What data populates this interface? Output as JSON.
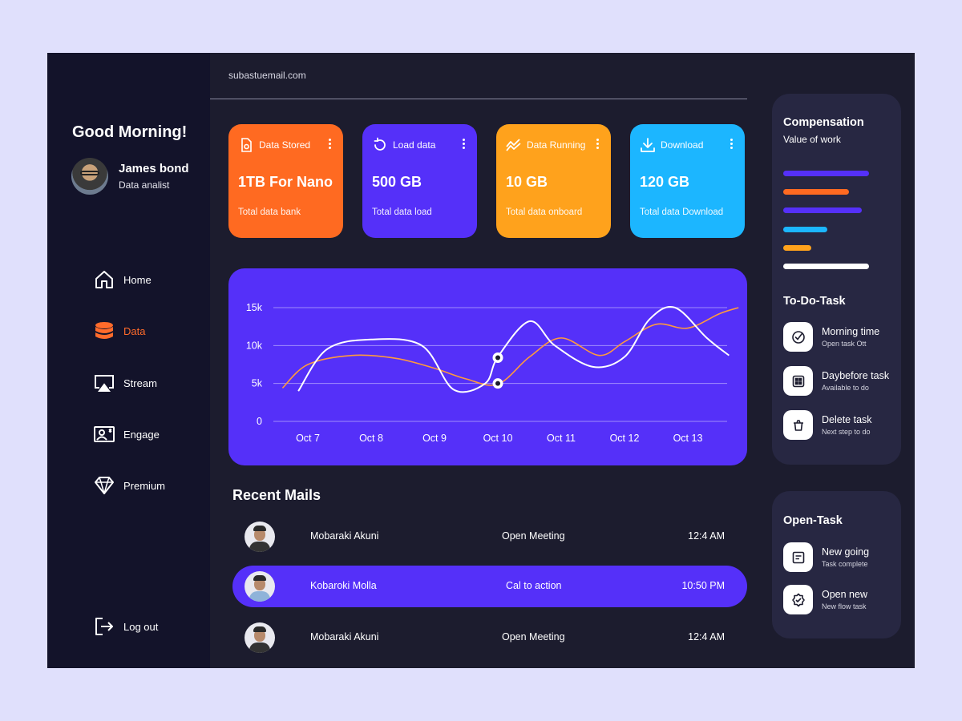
{
  "sidebar": {
    "greeting": "Good Morning!",
    "user_name": "James bond",
    "user_role": "Data analist",
    "nav": [
      {
        "label": "Home",
        "icon": "home-icon"
      },
      {
        "label": "Data",
        "icon": "database-icon",
        "active": true
      },
      {
        "label": "Stream",
        "icon": "cast-icon"
      },
      {
        "label": "Engage",
        "icon": "user-card-icon"
      },
      {
        "label": "Premium",
        "icon": "diamond-icon"
      }
    ],
    "logout": "Log out"
  },
  "header": {
    "email": "subastuemail.com"
  },
  "cards": [
    {
      "title": "Data Stored",
      "value": "1TB For Nano",
      "sub": "Total data bank",
      "color": "#ff6a21",
      "icon": "file-icon"
    },
    {
      "title": "Load data",
      "value": "500 GB",
      "sub": "Total data load",
      "color": "#5530f9",
      "icon": "refresh-icon"
    },
    {
      "title": "Data Running",
      "value": "10 GB",
      "sub": "Total data onboard",
      "color": "#ffa21c",
      "icon": "trend-icon"
    },
    {
      "title": "Download",
      "value": "120 GB",
      "sub": "Total data Download",
      "color": "#1cb6ff",
      "icon": "download-icon"
    }
  ],
  "chart_data": {
    "type": "line",
    "categories": [
      "Oct 7",
      "Oct 8",
      "Oct  9",
      "Oct 10",
      "Oct 11",
      "Oct 12",
      "Oct 13"
    ],
    "yticks": [
      "15k",
      "10k",
      "5k",
      "0"
    ],
    "ylim": [
      0,
      15000
    ],
    "grid": true,
    "series": [
      {
        "color": "#ffffff",
        "x": [
          6.85,
          7.3,
          8.0,
          8.8,
          9.3,
          9.8,
          10.0,
          10.5,
          10.9,
          11.5,
          12.0,
          12.4,
          12.8,
          13.3,
          13.65
        ],
        "values": [
          4000,
          9500,
          10800,
          10000,
          4200,
          5000,
          8500,
          13200,
          10000,
          7200,
          8500,
          13500,
          15000,
          11000,
          8700
        ]
      },
      {
        "color": "#ff9a3c",
        "x": [
          6.6,
          7.0,
          7.7,
          8.4,
          9.0,
          9.5,
          10.0,
          10.5,
          11.0,
          11.6,
          12.0,
          12.5,
          13.0,
          13.5,
          13.8
        ],
        "values": [
          4400,
          7500,
          8700,
          8300,
          7000,
          5600,
          4900,
          8500,
          11000,
          8700,
          10500,
          12800,
          12300,
          14200,
          15000
        ]
      }
    ],
    "markers": [
      {
        "x": 10.0,
        "value": 8400
      },
      {
        "x": 10.0,
        "value": 5000
      }
    ]
  },
  "mails": {
    "title": "Recent Mails",
    "rows": [
      {
        "name": "Mobaraki Akuni",
        "subject": "Open Meeting",
        "time": "12:4 AM",
        "highlight": false
      },
      {
        "name": "Kobaroki Molla",
        "subject": "Cal to action",
        "time": "10:50 PM",
        "highlight": true
      },
      {
        "name": "Mobaraki Akuni",
        "subject": "Open Meeting",
        "time": "12:4 AM",
        "highlight": false
      }
    ]
  },
  "compensation": {
    "title": "Compensation",
    "subtitle": "Value of work",
    "bars": [
      {
        "color": "#5530f9",
        "fraction": 1.0
      },
      {
        "color": "#ff6a21",
        "fraction": 0.77
      },
      {
        "color": "#5530f9",
        "fraction": 0.92
      },
      {
        "color": "#1cb6ff",
        "fraction": 0.51
      },
      {
        "color": "#ffa21c",
        "fraction": 0.33
      },
      {
        "color": "#ffffff",
        "fraction": 1.0
      }
    ]
  },
  "todo": {
    "title": "To-Do-Task",
    "items": [
      {
        "title": "Morning time",
        "sub": "Open task Ott",
        "icon": "check-circle-icon"
      },
      {
        "title": "Daybefore task",
        "sub": "Available to do",
        "icon": "grid-icon"
      },
      {
        "title": "Delete task",
        "sub": "Next step to do",
        "icon": "trash-icon"
      }
    ]
  },
  "open_task": {
    "title": "Open-Task",
    "items": [
      {
        "title": "New going",
        "sub": "Task complete",
        "icon": "note-icon"
      },
      {
        "title": "Open new",
        "sub": "New flow task",
        "icon": "badge-check-icon"
      }
    ]
  }
}
